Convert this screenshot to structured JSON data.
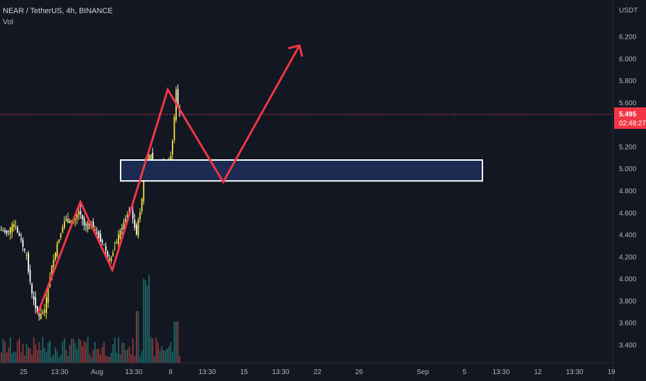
{
  "header": {
    "title": "NEAR / TetherUS, 4h, BINANCE",
    "volume_label": "Vol"
  },
  "price_axis": {
    "unit": "USDT",
    "ticks": [
      "6.200",
      "6.000",
      "5.800",
      "5.600",
      "5.200",
      "5.000",
      "4.800",
      "4.600",
      "4.400",
      "4.200",
      "4.000",
      "3.800",
      "3.600",
      "3.400"
    ],
    "tick_values": [
      6.2,
      6.0,
      5.8,
      5.6,
      5.2,
      5.0,
      4.8,
      4.6,
      4.4,
      4.2,
      4.0,
      3.8,
      3.6,
      3.4
    ]
  },
  "time_axis": {
    "ticks": [
      "25",
      "13:30",
      "Aug",
      "13:30",
      "8",
      "13:30",
      "15",
      "13:30",
      "22",
      "26",
      "Sep",
      "5",
      "13:30",
      "12",
      "13:30",
      "19"
    ]
  },
  "current_price": {
    "value": "5.495",
    "price": 5.495,
    "countdown": "02:48:27"
  },
  "colors": {
    "background": "#131722",
    "candle_up": "#f5e642",
    "candle_down": "#ffffff",
    "volume_up": "#26a69a",
    "volume_down": "#ef5350",
    "drawing_red": "#f23645",
    "zone_fill": "#1c2b52",
    "zone_border": "#ffffff",
    "price_line": "#f23645"
  },
  "chart_data": {
    "type": "candlestick",
    "ylim": [
      3.3,
      6.4
    ],
    "support_zone": {
      "price_low": 4.89,
      "price_high": 5.08
    },
    "projection_path": [
      {
        "time": "Jul 25",
        "price": 3.68
      },
      {
        "time": "Jul 29",
        "price": 4.7
      },
      {
        "time": "Aug 1",
        "price": 4.08
      },
      {
        "time": "Aug 8",
        "price": 5.72
      },
      {
        "time": "Aug 12",
        "price": 4.88
      },
      {
        "time": "Aug 19",
        "price": 6.12
      }
    ]
  }
}
